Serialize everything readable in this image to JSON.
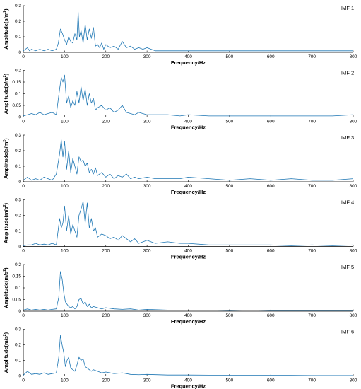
{
  "chart_data": [
    {
      "type": "line",
      "label": "IMF 1",
      "xlabel": "Frequency/Hz",
      "ylabel": "Amplitude(s/m^2)",
      "xlim": [
        0,
        800
      ],
      "ylim": [
        0,
        0.3
      ],
      "xticks": [
        "0",
        "100",
        "200",
        "300",
        "400",
        "500",
        "600",
        "700",
        "800"
      ],
      "yticks": [
        "0",
        "0.1",
        "0.2",
        "0.3"
      ],
      "color": "#1f77b4",
      "series": [
        {
          "x": [
            0,
            10,
            15,
            20,
            30,
            40,
            50,
            60,
            70,
            80,
            85,
            90,
            95,
            100,
            105,
            110,
            115,
            120,
            125,
            130,
            133,
            136,
            140,
            145,
            150,
            155,
            160,
            165,
            170,
            175,
            180,
            185,
            190,
            195,
            200,
            210,
            220,
            230,
            240,
            250,
            260,
            270,
            280,
            290,
            300,
            310,
            320,
            340,
            360,
            380,
            400,
            450,
            500,
            550,
            600,
            650,
            700,
            750,
            800
          ],
          "y": [
            0.01,
            0.03,
            0.01,
            0.02,
            0.01,
            0.02,
            0.01,
            0.02,
            0.01,
            0.02,
            0.06,
            0.15,
            0.12,
            0.08,
            0.05,
            0.1,
            0.07,
            0.06,
            0.12,
            0.08,
            0.26,
            0.1,
            0.14,
            0.06,
            0.18,
            0.08,
            0.15,
            0.09,
            0.16,
            0.04,
            0.05,
            0.03,
            0.06,
            0.02,
            0.05,
            0.03,
            0.04,
            0.02,
            0.07,
            0.03,
            0.04,
            0.02,
            0.03,
            0.02,
            0.03,
            0.02,
            0.01,
            0.01,
            0.01,
            0.01,
            0.01,
            0.01,
            0.01,
            0.01,
            0.01,
            0.01,
            0.01,
            0.01,
            0.01
          ]
        }
      ]
    },
    {
      "type": "line",
      "label": "IMF 2",
      "xlabel": "Frequency/Hz",
      "ylabel": "Amplitude(s/m^2)",
      "xlim": [
        0,
        800
      ],
      "ylim": [
        0,
        0.2
      ],
      "xticks": [
        "0",
        "100",
        "200",
        "300",
        "400",
        "500",
        "600",
        "700",
        "800"
      ],
      "yticks": [
        "0",
        "0.05",
        "0.1",
        "0.15",
        "0.2"
      ],
      "color": "#1f77b4",
      "series": [
        {
          "x": [
            0,
            10,
            20,
            30,
            40,
            50,
            60,
            70,
            80,
            88,
            92,
            96,
            100,
            105,
            110,
            115,
            120,
            125,
            130,
            135,
            140,
            145,
            150,
            155,
            160,
            165,
            170,
            175,
            180,
            190,
            200,
            210,
            220,
            230,
            240,
            250,
            260,
            270,
            280,
            300,
            320,
            350,
            380,
            400,
            450,
            500,
            550,
            600,
            650,
            700,
            750,
            800
          ],
          "y": [
            0.005,
            0.01,
            0.015,
            0.01,
            0.02,
            0.01,
            0.015,
            0.02,
            0.01,
            0.12,
            0.17,
            0.15,
            0.18,
            0.06,
            0.09,
            0.04,
            0.07,
            0.05,
            0.11,
            0.06,
            0.13,
            0.07,
            0.12,
            0.05,
            0.1,
            0.06,
            0.08,
            0.03,
            0.04,
            0.05,
            0.03,
            0.04,
            0.02,
            0.03,
            0.05,
            0.02,
            0.015,
            0.01,
            0.02,
            0.01,
            0.01,
            0.01,
            0.005,
            0.01,
            0.005,
            0.005,
            0.005,
            0.005,
            0.005,
            0.005,
            0.005,
            0.01
          ]
        }
      ]
    },
    {
      "type": "line",
      "label": "IMF 3",
      "xlabel": "Frequency/Hz",
      "ylabel": "Amplitude(s/m^2)",
      "xlim": [
        0,
        800
      ],
      "ylim": [
        0,
        0.3
      ],
      "xticks": [
        "0",
        "100",
        "200",
        "300",
        "400",
        "500",
        "600",
        "700",
        "800"
      ],
      "yticks": [
        "0",
        "0.1",
        "0.2",
        "0.3"
      ],
      "color": "#1f77b4",
      "series": [
        {
          "x": [
            0,
            10,
            20,
            30,
            40,
            50,
            60,
            70,
            80,
            88,
            92,
            96,
            100,
            105,
            110,
            115,
            120,
            125,
            130,
            135,
            140,
            145,
            150,
            155,
            160,
            165,
            170,
            175,
            180,
            190,
            200,
            210,
            220,
            230,
            240,
            250,
            260,
            270,
            280,
            300,
            320,
            350,
            380,
            400,
            450,
            500,
            550,
            600,
            650,
            700,
            750,
            800
          ],
          "y": [
            0.01,
            0.03,
            0.01,
            0.02,
            0.01,
            0.03,
            0.02,
            0.01,
            0.05,
            0.18,
            0.27,
            0.16,
            0.26,
            0.08,
            0.2,
            0.06,
            0.15,
            0.1,
            0.05,
            0.16,
            0.13,
            0.14,
            0.1,
            0.12,
            0.06,
            0.08,
            0.05,
            0.09,
            0.04,
            0.06,
            0.03,
            0.05,
            0.02,
            0.04,
            0.03,
            0.05,
            0.02,
            0.03,
            0.02,
            0.03,
            0.02,
            0.02,
            0.02,
            0.03,
            0.02,
            0.01,
            0.02,
            0.01,
            0.02,
            0.01,
            0.01,
            0.02
          ]
        }
      ]
    },
    {
      "type": "line",
      "label": "IMF 4",
      "xlabel": "Frequency/Hz",
      "ylabel": "Amplitude(m/s^2)",
      "xlim": [
        0,
        800
      ],
      "ylim": [
        0,
        0.3
      ],
      "xticks": [
        "0",
        "100",
        "200",
        "300",
        "400",
        "500",
        "600",
        "700",
        "800"
      ],
      "yticks": [
        "0",
        "0.1",
        "0.2",
        "0.3"
      ],
      "color": "#1f77b4",
      "series": [
        {
          "x": [
            0,
            10,
            20,
            30,
            40,
            50,
            60,
            70,
            80,
            88,
            92,
            96,
            100,
            105,
            110,
            115,
            120,
            125,
            130,
            135,
            140,
            145,
            150,
            155,
            160,
            165,
            170,
            175,
            180,
            190,
            200,
            210,
            220,
            230,
            240,
            250,
            260,
            270,
            280,
            300,
            320,
            350,
            380,
            400,
            450,
            500,
            550,
            600,
            650,
            700,
            750,
            800
          ],
          "y": [
            0.005,
            0.01,
            0.01,
            0.02,
            0.01,
            0.015,
            0.01,
            0.02,
            0.01,
            0.18,
            0.12,
            0.15,
            0.26,
            0.1,
            0.2,
            0.08,
            0.14,
            0.1,
            0.06,
            0.2,
            0.24,
            0.29,
            0.15,
            0.28,
            0.12,
            0.18,
            0.1,
            0.12,
            0.06,
            0.08,
            0.07,
            0.05,
            0.06,
            0.04,
            0.07,
            0.05,
            0.03,
            0.05,
            0.02,
            0.04,
            0.02,
            0.03,
            0.02,
            0.02,
            0.01,
            0.01,
            0.01,
            0.01,
            0.005,
            0.01,
            0.005,
            0.01
          ]
        }
      ]
    },
    {
      "type": "line",
      "label": "IMF 5",
      "xlabel": "Frequency/Hz",
      "ylabel": "Amplitude(m/s^2)",
      "xlim": [
        0,
        800
      ],
      "ylim": [
        0,
        0.2
      ],
      "xticks": [
        "0",
        "100",
        "200",
        "300",
        "400",
        "500",
        "600",
        "700",
        "800"
      ],
      "yticks": [
        "0",
        "0.05",
        "0.1",
        "0.15",
        "0.2"
      ],
      "color": "#1f77b4",
      "series": [
        {
          "x": [
            0,
            10,
            20,
            30,
            40,
            50,
            60,
            70,
            80,
            86,
            90,
            94,
            98,
            102,
            106,
            110,
            115,
            120,
            125,
            130,
            135,
            140,
            145,
            150,
            155,
            160,
            165,
            170,
            180,
            190,
            200,
            220,
            240,
            260,
            280,
            300,
            350,
            400,
            450,
            500,
            550,
            600,
            650,
            700,
            750,
            800
          ],
          "y": [
            0.005,
            0.01,
            0.005,
            0.008,
            0.005,
            0.008,
            0.005,
            0.008,
            0.01,
            0.06,
            0.17,
            0.14,
            0.08,
            0.04,
            0.03,
            0.02,
            0.015,
            0.02,
            0.01,
            0.02,
            0.05,
            0.055,
            0.03,
            0.04,
            0.02,
            0.03,
            0.015,
            0.02,
            0.015,
            0.01,
            0.015,
            0.01,
            0.008,
            0.01,
            0.005,
            0.008,
            0.005,
            0.005,
            0.005,
            0.003,
            0.005,
            0.003,
            0.003,
            0.003,
            0.003,
            0.003
          ]
        }
      ]
    },
    {
      "type": "line",
      "label": "IMF 6",
      "xlabel": "Frequency/Hz",
      "ylabel": "Amplitude(m/s^2)",
      "xlim": [
        0,
        800
      ],
      "ylim": [
        0,
        0.3
      ],
      "xticks": [
        "0",
        "100",
        "200",
        "300",
        "400",
        "500",
        "600",
        "700",
        "800"
      ],
      "yticks": [
        "0",
        "0.1",
        "0.2",
        "0.3"
      ],
      "color": "#1f77b4",
      "series": [
        {
          "x": [
            0,
            10,
            20,
            30,
            40,
            50,
            60,
            70,
            80,
            86,
            90,
            94,
            98,
            102,
            106,
            110,
            115,
            120,
            125,
            130,
            135,
            140,
            145,
            150,
            155,
            160,
            165,
            170,
            180,
            190,
            200,
            220,
            240,
            260,
            280,
            300,
            350,
            400,
            450,
            500,
            550,
            600,
            650,
            700,
            750,
            800
          ],
          "y": [
            0.005,
            0.03,
            0.01,
            0.015,
            0.01,
            0.02,
            0.01,
            0.015,
            0.02,
            0.12,
            0.26,
            0.2,
            0.15,
            0.06,
            0.1,
            0.12,
            0.05,
            0.04,
            0.03,
            0.07,
            0.12,
            0.1,
            0.11,
            0.06,
            0.05,
            0.04,
            0.03,
            0.04,
            0.03,
            0.02,
            0.025,
            0.015,
            0.02,
            0.01,
            0.008,
            0.01,
            0.006,
            0.006,
            0.005,
            0.005,
            0.004,
            0.004,
            0.004,
            0.003,
            0.003,
            0.003
          ]
        }
      ]
    }
  ]
}
